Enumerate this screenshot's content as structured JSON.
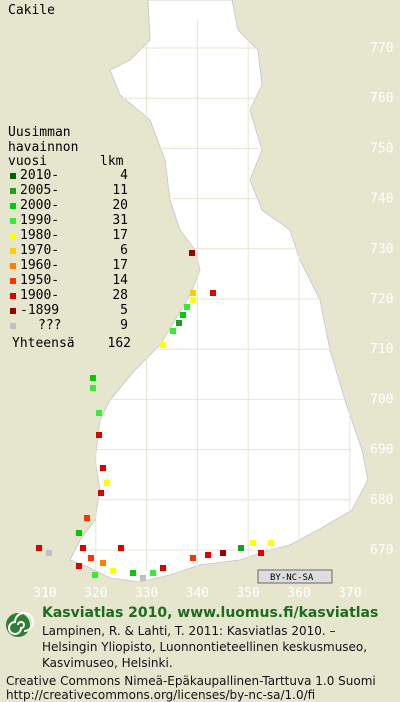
{
  "title": "Cakile",
  "legend": {
    "heading": [
      "Uusimman",
      "havainnon"
    ],
    "column_period": "vuosi",
    "column_count": "lkm",
    "rows": [
      {
        "label": "2010-",
        "count": 4,
        "color": "#006400"
      },
      {
        "label": "2005-",
        "count": 11,
        "color": "#1e9e1e"
      },
      {
        "label": "2000-",
        "count": 20,
        "color": "#00cc00"
      },
      {
        "label": "1990-",
        "count": 31,
        "color": "#33ee33"
      },
      {
        "label": "1980-",
        "count": 17,
        "color": "#ffff00"
      },
      {
        "label": "1970-",
        "count": 6,
        "color": "#ffcc00"
      },
      {
        "label": "1960-",
        "count": 17,
        "color": "#ff8000"
      },
      {
        "label": "1950-",
        "count": 14,
        "color": "#ff3300"
      },
      {
        "label": "1900-",
        "count": 28,
        "color": "#dd0000"
      },
      {
        "label": "-1899",
        "count": 5,
        "color": "#990000"
      },
      {
        "label": "???",
        "count": 9,
        "color": "#c0c0c0"
      }
    ],
    "total_label": "Yhteensä",
    "total": 162
  },
  "grid": {
    "north": [
      770,
      760,
      750,
      740,
      730,
      720,
      710,
      700,
      690,
      680,
      670
    ],
    "east": [
      310,
      320,
      330,
      340,
      350,
      360,
      370
    ]
  },
  "license_badge": "BY-NC-SA",
  "footer": {
    "heading": "Kasviatlas 2010, www.luomus.fi/kasviatlas",
    "citation": [
      "Lampinen, R. & Lahti, T. 2011: Kasviatlas 2010. –",
      "Helsingin Yliopisto, Luonnontieteellinen keskusmuseo,",
      "Kasvimuseo, Helsinki."
    ],
    "license": "Creative Commons Nimeä-Epäkaupallinen-Tarttuva 1.0 Suomi",
    "url": "http://creativecommons.org/licenses/by-nc-sa/1.0/fi"
  }
}
